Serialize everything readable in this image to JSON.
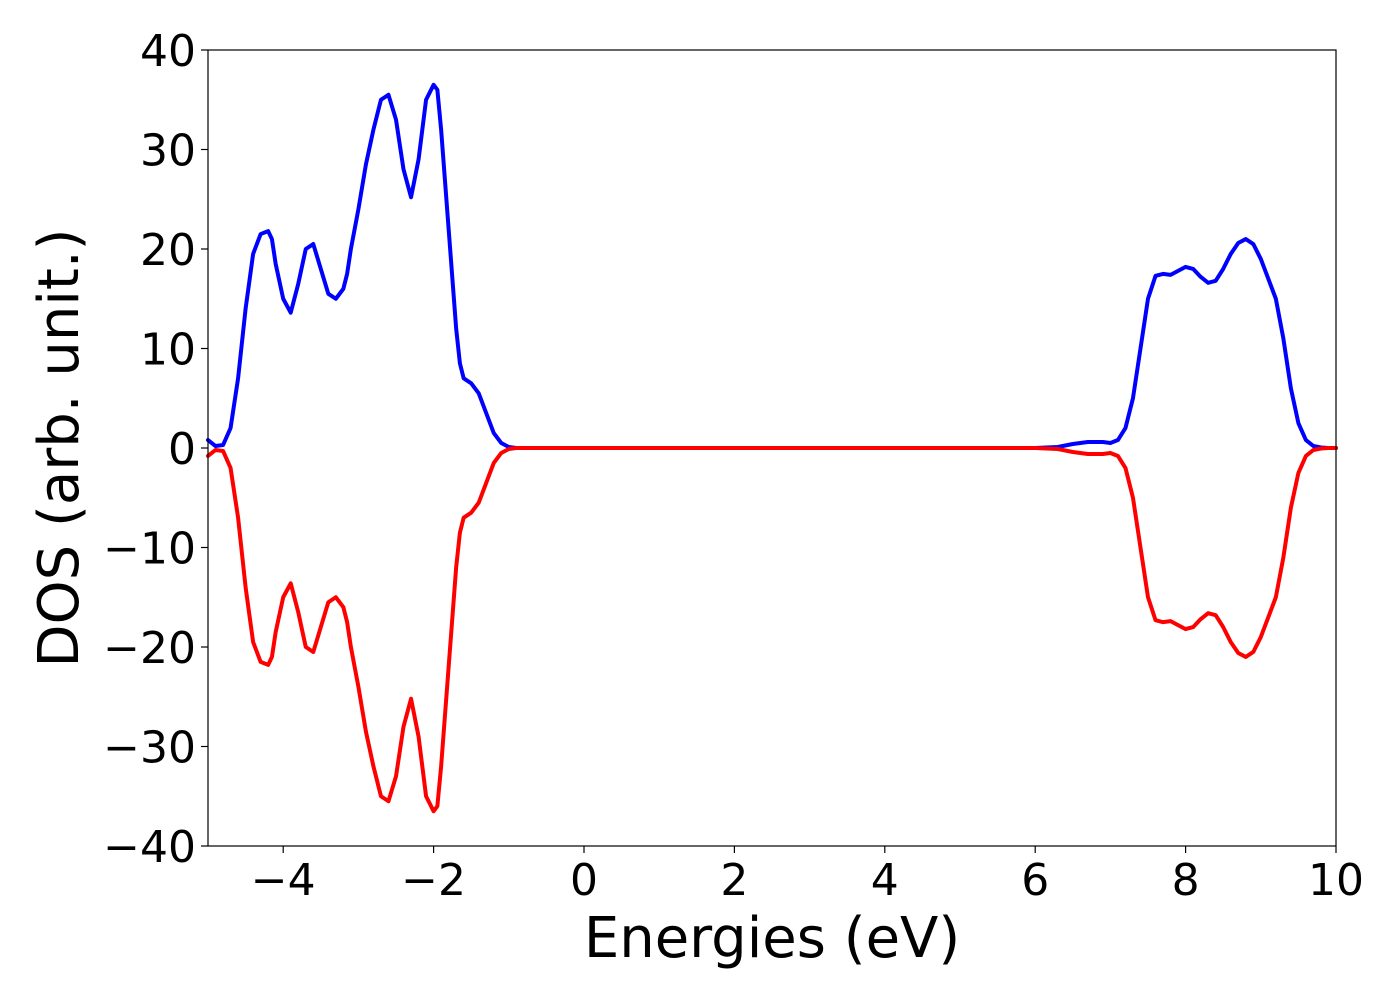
{
  "chart_data": {
    "type": "line",
    "title": "",
    "xlabel": "Energies (eV)",
    "ylabel": "DOS (arb. unit.)",
    "xlim": [
      -5,
      10
    ],
    "ylim": [
      -40,
      40
    ],
    "xticks": [
      -4,
      -2,
      0,
      2,
      4,
      6,
      8,
      10
    ],
    "yticks": [
      40,
      30,
      20,
      10,
      0,
      -10,
      -20,
      -30,
      -40
    ],
    "xtick_labels": [
      "−4",
      "−2",
      "0",
      "2",
      "4",
      "6",
      "8",
      "10"
    ],
    "ytick_labels": [
      "40",
      "30",
      "20",
      "10",
      "0",
      "−10",
      "−20",
      "−30",
      "−40"
    ],
    "grid": false,
    "legend": "none",
    "series": [
      {
        "color": "#0000ff",
        "x": [
          -5.0,
          -4.9,
          -4.8,
          -4.7,
          -4.6,
          -4.5,
          -4.4,
          -4.3,
          -4.2,
          -4.15,
          -4.1,
          -4.0,
          -3.9,
          -3.8,
          -3.7,
          -3.6,
          -3.5,
          -3.4,
          -3.3,
          -3.2,
          -3.15,
          -3.1,
          -3.0,
          -2.9,
          -2.8,
          -2.7,
          -2.6,
          -2.5,
          -2.4,
          -2.3,
          -2.2,
          -2.1,
          -2.0,
          -1.95,
          -1.9,
          -1.8,
          -1.7,
          -1.65,
          -1.6,
          -1.5,
          -1.4,
          -1.3,
          -1.2,
          -1.1,
          -1.0,
          -0.9,
          -0.8,
          -0.7,
          -0.6,
          -0.5,
          0.0,
          1.0,
          2.0,
          3.0,
          4.0,
          5.0,
          6.0,
          6.3,
          6.5,
          6.7,
          6.9,
          7.0,
          7.1,
          7.2,
          7.3,
          7.4,
          7.5,
          7.6,
          7.7,
          7.8,
          7.9,
          8.0,
          8.1,
          8.2,
          8.3,
          8.4,
          8.5,
          8.6,
          8.7,
          8.8,
          8.9,
          9.0,
          9.1,
          9.2,
          9.3,
          9.4,
          9.5,
          9.6,
          9.7,
          9.8,
          9.9,
          10.0
        ],
        "y": [
          0.8,
          0.2,
          0.3,
          2.0,
          7.0,
          14.0,
          19.5,
          21.5,
          21.8,
          21.0,
          18.5,
          15.0,
          13.6,
          16.5,
          20.0,
          20.5,
          18.0,
          15.5,
          15.0,
          16.0,
          17.5,
          20.0,
          24.0,
          28.5,
          32.0,
          35.0,
          35.5,
          33.0,
          28.0,
          25.2,
          29.0,
          35.0,
          36.5,
          36.0,
          32.0,
          22.0,
          12.0,
          8.5,
          7.0,
          6.5,
          5.5,
          3.5,
          1.5,
          0.5,
          0.1,
          0.0,
          0.0,
          0.0,
          0.0,
          0.0,
          0.0,
          0.0,
          0.0,
          0.0,
          0.0,
          0.0,
          0.0,
          0.1,
          0.4,
          0.6,
          0.6,
          0.5,
          0.8,
          2.0,
          5.0,
          10.0,
          15.0,
          17.3,
          17.5,
          17.4,
          17.8,
          18.2,
          18.0,
          17.2,
          16.6,
          16.8,
          18.0,
          19.5,
          20.6,
          21.0,
          20.5,
          19.0,
          17.0,
          15.0,
          11.0,
          6.0,
          2.5,
          0.8,
          0.2,
          0.05,
          0.0,
          0.0
        ]
      },
      {
        "color": "#ff0000",
        "x": [
          -5.0,
          -4.9,
          -4.8,
          -4.7,
          -4.6,
          -4.5,
          -4.4,
          -4.3,
          -4.2,
          -4.15,
          -4.1,
          -4.0,
          -3.9,
          -3.8,
          -3.7,
          -3.6,
          -3.5,
          -3.4,
          -3.3,
          -3.2,
          -3.15,
          -3.1,
          -3.0,
          -2.9,
          -2.8,
          -2.7,
          -2.6,
          -2.5,
          -2.4,
          -2.3,
          -2.2,
          -2.1,
          -2.0,
          -1.95,
          -1.9,
          -1.8,
          -1.7,
          -1.65,
          -1.6,
          -1.5,
          -1.4,
          -1.3,
          -1.2,
          -1.1,
          -1.0,
          -0.9,
          -0.8,
          -0.7,
          -0.6,
          -0.5,
          0.0,
          1.0,
          2.0,
          3.0,
          4.0,
          5.0,
          6.0,
          6.3,
          6.5,
          6.7,
          6.9,
          7.0,
          7.1,
          7.2,
          7.3,
          7.4,
          7.5,
          7.6,
          7.7,
          7.8,
          7.9,
          8.0,
          8.1,
          8.2,
          8.3,
          8.4,
          8.5,
          8.6,
          8.7,
          8.8,
          8.9,
          9.0,
          9.1,
          9.2,
          9.3,
          9.4,
          9.5,
          9.6,
          9.7,
          9.8,
          9.9,
          10.0
        ],
        "y": [
          -0.8,
          -0.2,
          -0.3,
          -2.0,
          -7.0,
          -14.0,
          -19.5,
          -21.5,
          -21.8,
          -21.0,
          -18.5,
          -15.0,
          -13.6,
          -16.5,
          -20.0,
          -20.5,
          -18.0,
          -15.5,
          -15.0,
          -16.0,
          -17.5,
          -20.0,
          -24.0,
          -28.5,
          -32.0,
          -35.0,
          -35.5,
          -33.0,
          -28.0,
          -25.2,
          -29.0,
          -35.0,
          -36.5,
          -36.0,
          -32.0,
          -22.0,
          -12.0,
          -8.5,
          -7.0,
          -6.5,
          -5.5,
          -3.5,
          -1.5,
          -0.5,
          -0.1,
          0.0,
          0.0,
          0.0,
          0.0,
          0.0,
          0.0,
          0.0,
          0.0,
          0.0,
          0.0,
          0.0,
          0.0,
          -0.1,
          -0.4,
          -0.6,
          -0.6,
          -0.5,
          -0.8,
          -2.0,
          -5.0,
          -10.0,
          -15.0,
          -17.3,
          -17.5,
          -17.4,
          -17.8,
          -18.2,
          -18.0,
          -17.2,
          -16.6,
          -16.8,
          -18.0,
          -19.5,
          -20.6,
          -21.0,
          -20.5,
          -19.0,
          -17.0,
          -15.0,
          -11.0,
          -6.0,
          -2.5,
          -0.8,
          -0.2,
          -0.05,
          0.0,
          0.0
        ]
      }
    ]
  }
}
